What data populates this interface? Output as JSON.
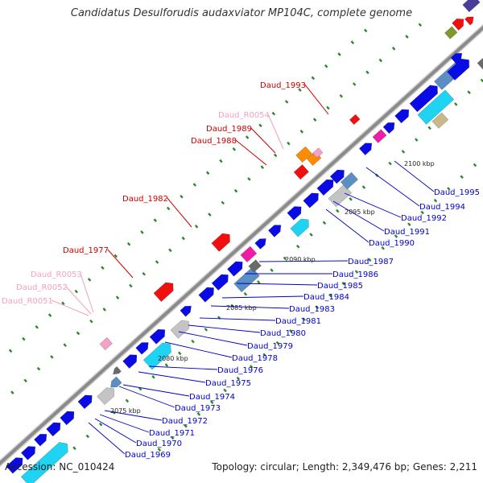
{
  "title": "Candidatus Desulforudis audaxviator MP104C, complete genome",
  "accession": "Accession: NC_010424",
  "summary": "Topology: circular; Length: 2,349,476 bp; Genes: 2,211",
  "colors": {
    "backbone": "#8a8a8a",
    "rna_label": "#f4a0c0",
    "red_label": "#cc0000",
    "blue_label": "#0000cc",
    "dots": "#2a8a2a"
  },
  "ticks": [
    {
      "label": "2075 kbp"
    },
    {
      "label": "2080 kbp"
    },
    {
      "label": "2085 kbp"
    },
    {
      "label": "2090 kbp"
    },
    {
      "label": "2095 kbp"
    },
    {
      "label": "2100 kbp"
    }
  ],
  "upper_labels": [
    {
      "text": "Daud_R0051",
      "kind": "rna"
    },
    {
      "text": "Daud_R0052",
      "kind": "rna"
    },
    {
      "text": "Daud_R0053",
      "kind": "rna"
    },
    {
      "text": "Daud_1977",
      "kind": "red"
    },
    {
      "text": "Daud_1982",
      "kind": "red"
    },
    {
      "text": "Daud_1988",
      "kind": "red"
    },
    {
      "text": "Daud_1989",
      "kind": "red"
    },
    {
      "text": "Daud_R0054",
      "kind": "rna"
    },
    {
      "text": "Daud_1993",
      "kind": "red"
    }
  ],
  "lower_labels": [
    {
      "text": "Daud_1969"
    },
    {
      "text": "Daud_1970"
    },
    {
      "text": "Daud_1971"
    },
    {
      "text": "Daud_1972"
    },
    {
      "text": "Daud_1973"
    },
    {
      "text": "Daud_1974"
    },
    {
      "text": "Daud_1975"
    },
    {
      "text": "Daud_1976"
    },
    {
      "text": "Daud_1978"
    },
    {
      "text": "Daud_1979"
    },
    {
      "text": "Daud_1980"
    },
    {
      "text": "Daud_1981"
    },
    {
      "text": "Daud_1983"
    },
    {
      "text": "Daud_1984"
    },
    {
      "text": "Daud_1985"
    },
    {
      "text": "Daud_1986"
    },
    {
      "text": "Daud_1987"
    },
    {
      "text": "Daud_1990"
    },
    {
      "text": "Daud_1991"
    },
    {
      "text": "Daud_1992"
    },
    {
      "text": "Daud_1994"
    },
    {
      "text": "Daud_1995"
    }
  ]
}
